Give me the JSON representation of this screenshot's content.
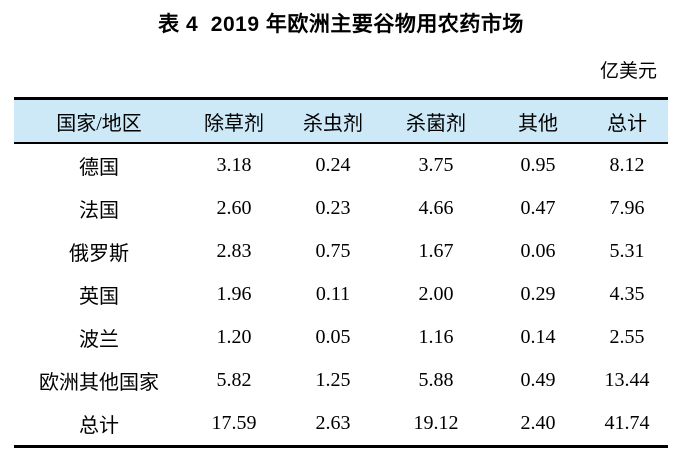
{
  "title": "表 4  2019 年欧洲主要谷物用农药市场",
  "unit": "亿美元",
  "colors": {
    "header_bg": "#cde8f6",
    "rule": "#000000",
    "text": "#000000"
  },
  "table": {
    "headers": [
      "国家/地区",
      "除草剂",
      "杀虫剂",
      "杀菌剂",
      "其他",
      "总计"
    ],
    "rows": [
      [
        "德国",
        "3.18",
        "0.24",
        "3.75",
        "0.95",
        "8.12"
      ],
      [
        "法国",
        "2.60",
        "0.23",
        "4.66",
        "0.47",
        "7.96"
      ],
      [
        "俄罗斯",
        "2.83",
        "0.75",
        "1.67",
        "0.06",
        "5.31"
      ],
      [
        "英国",
        "1.96",
        "0.11",
        "2.00",
        "0.29",
        "4.35"
      ],
      [
        "波兰",
        "1.20",
        "0.05",
        "1.16",
        "0.14",
        "2.55"
      ],
      [
        "欧洲其他国家",
        "5.82",
        "1.25",
        "5.88",
        "0.49",
        "13.44"
      ],
      [
        "总计",
        "17.59",
        "2.63",
        "19.12",
        "2.40",
        "41.74"
      ]
    ]
  }
}
